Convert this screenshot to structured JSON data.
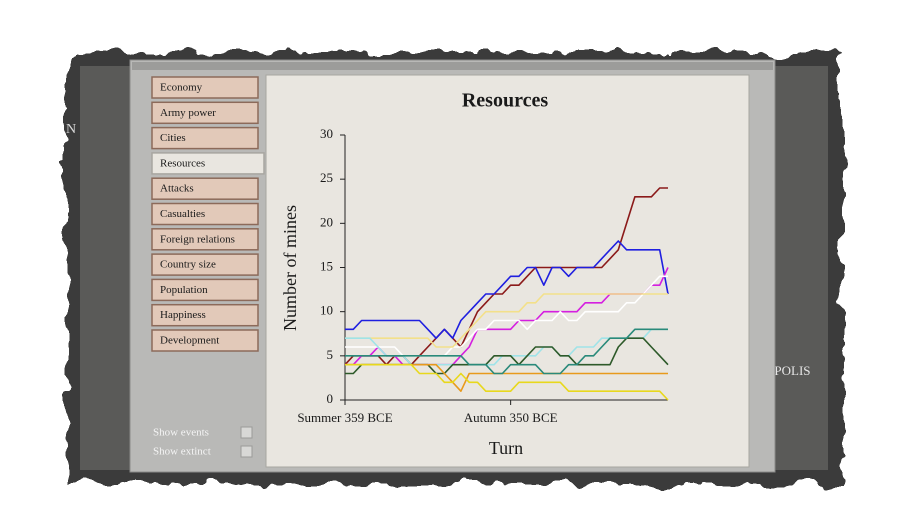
{
  "background_labels": [
    "N",
    "OPOLIS"
  ],
  "menu": {
    "items": [
      "Economy",
      "Army power",
      "Cities",
      "Resources",
      "Attacks",
      "Casualties",
      "Foreign relations",
      "Country size",
      "Population",
      "Happiness",
      "Development"
    ],
    "selected": 3
  },
  "options": [
    "Show events",
    "Show extinct"
  ],
  "chart_data": {
    "type": "line",
    "title": "Resources",
    "y_label": "Number of mines",
    "x_label": "Turn",
    "categories": [
      "Summer 359 BCE",
      null,
      null,
      null,
      null,
      null,
      null,
      null,
      null,
      null,
      null,
      null,
      null,
      null,
      null,
      null,
      null,
      null,
      null,
      null,
      "Autumn 350 BCE",
      null,
      null,
      null,
      null,
      null,
      null,
      null,
      null,
      null,
      null,
      null,
      null,
      null,
      null,
      null,
      null,
      null,
      null,
      null
    ],
    "ylim": [
      0,
      30
    ],
    "yticks": [
      0,
      5,
      10,
      15,
      20,
      25,
      30
    ],
    "series": [
      {
        "color": "#8b1a1a",
        "values": [
          4,
          5,
          5,
          5,
          5,
          4,
          5,
          5,
          4,
          5,
          6,
          7,
          8,
          7,
          6,
          8,
          10,
          11,
          12,
          12,
          13,
          13,
          14,
          15,
          15,
          15,
          15,
          15,
          15,
          15,
          15,
          15,
          16,
          17,
          20,
          23,
          23,
          23,
          24,
          24
        ]
      },
      {
        "color": "#1f1fe0",
        "values": [
          8,
          8,
          9,
          9,
          9,
          9,
          9,
          9,
          9,
          9,
          8,
          7,
          8,
          7,
          9,
          10,
          11,
          12,
          12,
          13,
          14,
          14,
          15,
          15,
          13,
          15,
          15,
          14,
          15,
          15,
          15,
          16,
          17,
          18,
          17,
          17,
          17,
          17,
          17,
          12
        ]
      },
      {
        "color": "#d51fe0",
        "values": [
          4,
          4,
          5,
          5,
          6,
          5,
          5,
          4,
          4,
          4,
          4,
          4,
          4,
          4,
          5,
          6,
          8,
          8,
          8,
          8,
          8,
          9,
          9,
          9,
          10,
          10,
          10,
          10,
          10,
          11,
          11,
          11,
          12,
          12,
          12,
          12,
          12,
          13,
          13,
          15
        ]
      },
      {
        "color": "#ffffff",
        "values": [
          6,
          6,
          6,
          6,
          6,
          6,
          6,
          5,
          5,
          5,
          5,
          5,
          5,
          6,
          6,
          7,
          8,
          8,
          9,
          9,
          9,
          9,
          8,
          9,
          9,
          9,
          10,
          9,
          9,
          10,
          10,
          10,
          10,
          10,
          11,
          11,
          12,
          13,
          14,
          14
        ]
      },
      {
        "color": "#f3e08a",
        "values": [
          7,
          7,
          7,
          7,
          7,
          7,
          7,
          7,
          7,
          7,
          7,
          6,
          6,
          6,
          7,
          8,
          9,
          10,
          10,
          10,
          10,
          10,
          11,
          11,
          12,
          12,
          12,
          12,
          12,
          12,
          12,
          12,
          12,
          12,
          12,
          12,
          12,
          12,
          12,
          12
        ]
      },
      {
        "color": "#9fe3e8",
        "values": [
          7,
          7,
          7,
          7,
          6,
          5,
          5,
          5,
          4,
          4,
          4,
          4,
          4,
          4,
          4,
          4,
          4,
          4,
          4,
          5,
          5,
          5,
          5,
          5,
          6,
          6,
          5,
          5,
          6,
          6,
          6,
          7,
          7,
          7,
          7,
          7,
          7,
          8,
          8,
          8
        ]
      },
      {
        "color": "#2e5a2a",
        "values": [
          3,
          3,
          4,
          4,
          4,
          4,
          4,
          4,
          4,
          4,
          4,
          3,
          3,
          4,
          4,
          4,
          4,
          4,
          5,
          5,
          5,
          4,
          5,
          6,
          6,
          6,
          5,
          5,
          4,
          4,
          4,
          4,
          4,
          6,
          7,
          7,
          7,
          6,
          5,
          4
        ]
      },
      {
        "color": "#e89a1c",
        "values": [
          4,
          4,
          4,
          4,
          4,
          4,
          4,
          4,
          4,
          4,
          4,
          4,
          3,
          2,
          1,
          3,
          3,
          3,
          3,
          3,
          3,
          3,
          3,
          3,
          3,
          3,
          3,
          3,
          3,
          3,
          3,
          3,
          3,
          3,
          3,
          3,
          3,
          3,
          3,
          3
        ]
      },
      {
        "color": "#e8d81c",
        "values": [
          4,
          4,
          4,
          4,
          4,
          4,
          4,
          4,
          4,
          3,
          3,
          3,
          2,
          2,
          3,
          2,
          2,
          1,
          1,
          1,
          1,
          2,
          2,
          2,
          2,
          2,
          2,
          1,
          1,
          1,
          1,
          1,
          1,
          1,
          1,
          1,
          1,
          1,
          1,
          0
        ]
      },
      {
        "color": "#2a8a7a",
        "values": [
          5,
          5,
          5,
          5,
          5,
          5,
          5,
          5,
          5,
          5,
          5,
          5,
          5,
          5,
          5,
          4,
          4,
          4,
          3,
          3,
          4,
          4,
          4,
          4,
          3,
          3,
          3,
          4,
          4,
          5,
          5,
          6,
          7,
          7,
          7,
          8,
          8,
          8,
          8,
          8
        ]
      }
    ]
  }
}
